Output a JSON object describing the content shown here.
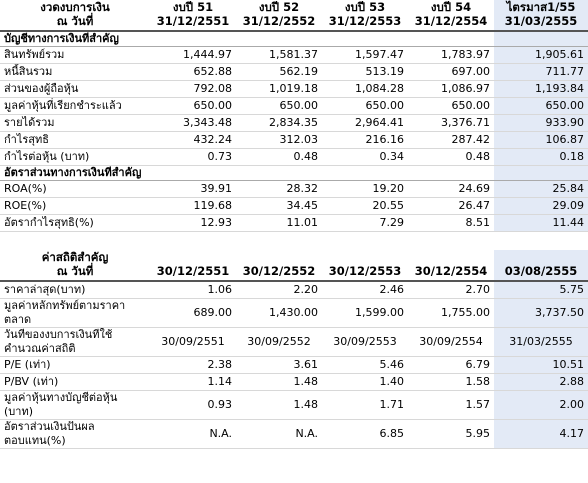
{
  "table1": {
    "header": [
      [
        "งวดงบการเงิน",
        "ณ วันที่"
      ],
      [
        "งบปี 51",
        "31/12/2551"
      ],
      [
        "งบปี 52",
        "31/12/2552"
      ],
      [
        "งบปี 53",
        "31/12/2553"
      ],
      [
        "งบปี 54",
        "31/12/2554"
      ],
      [
        "ไตรมาส1/55",
        "31/03/2555"
      ]
    ],
    "sections": [
      {
        "title": "บัญชีทางการเงินที่สำคัญ",
        "rows": [
          {
            "label": "สินทรัพย์รวม",
            "values": [
              "1,444.97",
              "1,581.37",
              "1,597.47",
              "1,783.97",
              "1,905.61"
            ]
          },
          {
            "label": "หนี้สินรวม",
            "values": [
              "652.88",
              "562.19",
              "513.19",
              "697.00",
              "711.77"
            ]
          },
          {
            "label": "ส่วนของผู้ถือหุ้น",
            "values": [
              "792.08",
              "1,019.18",
              "1,084.28",
              "1,086.97",
              "1,193.84"
            ]
          },
          {
            "label": "มูลค่าหุ้นที่เรียกชำระแล้ว",
            "values": [
              "650.00",
              "650.00",
              "650.00",
              "650.00",
              "650.00"
            ]
          },
          {
            "label": "รายได้รวม",
            "values": [
              "3,343.48",
              "2,834.35",
              "2,964.41",
              "3,376.71",
              "933.90"
            ]
          },
          {
            "label": "กำไรสุทธิ",
            "values": [
              "432.24",
              "312.03",
              "216.16",
              "287.42",
              "106.87"
            ]
          },
          {
            "label": "กำไรต่อหุ้น (บาท)",
            "values": [
              "0.73",
              "0.48",
              "0.34",
              "0.48",
              "0.18"
            ]
          }
        ]
      },
      {
        "title": "อัตราส่วนทางการเงินที่สำคัญ",
        "rows": [
          {
            "label": "ROA(%)",
            "values": [
              "39.91",
              "28.32",
              "19.20",
              "24.69",
              "25.84"
            ]
          },
          {
            "label": "ROE(%)",
            "values": [
              "119.68",
              "34.45",
              "20.55",
              "26.47",
              "29.09"
            ]
          },
          {
            "label": "อัตรากำไรสุทธิ(%)",
            "values": [
              "12.93",
              "11.01",
              "7.29",
              "8.51",
              "11.44"
            ]
          }
        ]
      }
    ]
  },
  "table2": {
    "header": [
      [
        "ค่าสถิติสำคัญ",
        "ณ วันที่"
      ],
      [
        "30/12/2551"
      ],
      [
        "30/12/2552"
      ],
      [
        "30/12/2553"
      ],
      [
        "30/12/2554"
      ],
      [
        "03/08/2555"
      ]
    ],
    "rows": [
      {
        "label": "ราคาล่าสุด(บาท)",
        "values": [
          "1.06",
          "2.20",
          "2.46",
          "2.70",
          "5.75"
        ]
      },
      {
        "label": "มูลค่าหลักทรัพย์ตามราคาตลาด",
        "values": [
          "689.00",
          "1,430.00",
          "1,599.00",
          "1,755.00",
          "3,737.50"
        ]
      },
      {
        "label": "วันที่ของงบการเงินที่ใช้คำนวณค่าสถิติ",
        "values": [
          "30/09/2551",
          "30/09/2552",
          "30/09/2553",
          "30/09/2554",
          "31/03/2555"
        ],
        "center": true
      },
      {
        "label": "P/E (เท่า)",
        "values": [
          "2.38",
          "3.61",
          "5.46",
          "6.79",
          "10.51"
        ]
      },
      {
        "label": "P/BV (เท่า)",
        "values": [
          "1.14",
          "1.48",
          "1.40",
          "1.58",
          "2.88"
        ]
      },
      {
        "label": "มูลค่าหุ้นทางบัญชีต่อหุ้น (บาท)",
        "values": [
          "0.93",
          "1.48",
          "1.71",
          "1.57",
          "2.00"
        ]
      },
      {
        "label": "อัตราส่วนเงินปันผลตอบแทน(%)",
        "values": [
          "N.A.",
          "N.A.",
          "6.85",
          "5.95",
          "4.17"
        ]
      }
    ]
  }
}
